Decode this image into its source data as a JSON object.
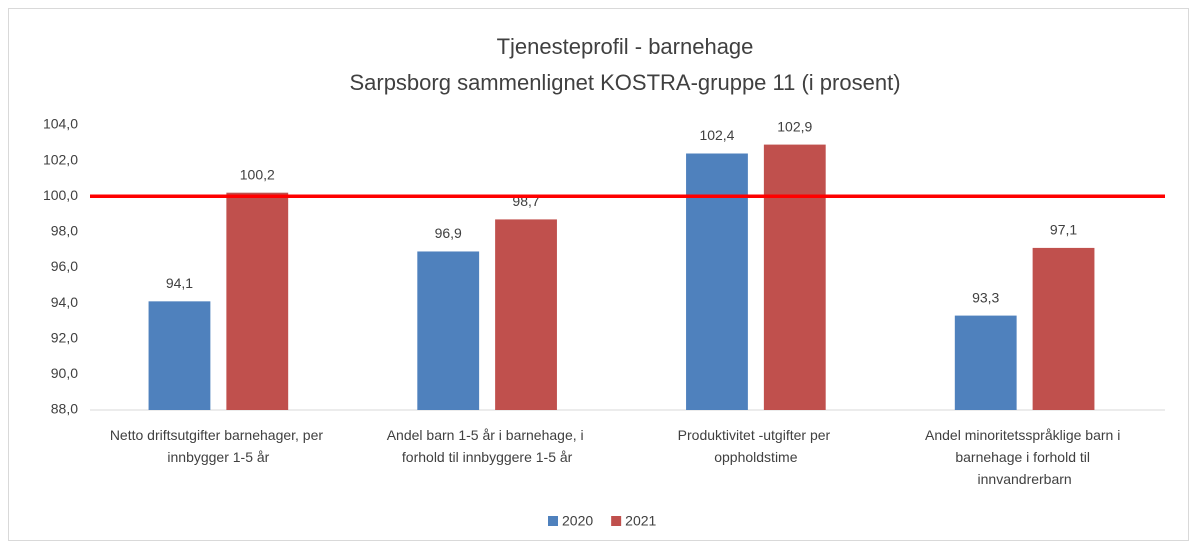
{
  "chart_data": {
    "type": "bar",
    "title": [
      "Tjenesteprofil - barnehage",
      "Sarpsborg sammenlignet KOSTRA-gruppe 11 (i prosent)"
    ],
    "categories": [
      "Netto driftsutgifter barnehager, per innbygger 1-5 år",
      "Andel barn 1-5 år i barnehage, i forhold til innbyggere 1-5 år",
      "Produktivitet -utgifter per oppholdstime",
      "Andel minoritetsspråklige barn i barnehage i forhold til innvandrerbarn"
    ],
    "series": [
      {
        "name": "2020",
        "color": "#4f81bd",
        "values": [
          94.1,
          96.9,
          102.4,
          93.3
        ],
        "value_labels": [
          "94,1",
          "96,9",
          "102,4",
          "93,3"
        ]
      },
      {
        "name": "2021",
        "color": "#c0504d",
        "values": [
          100.2,
          98.7,
          102.9,
          97.1
        ],
        "value_labels": [
          "100,2",
          "98,7",
          "102,9",
          "97,1"
        ]
      }
    ],
    "ylim": [
      88,
      104
    ],
    "yticks": [
      {
        "value": 88,
        "label": "88,0"
      },
      {
        "value": 90,
        "label": "90,0"
      },
      {
        "value": 92,
        "label": "92,0"
      },
      {
        "value": 94,
        "label": "94,0"
      },
      {
        "value": 96,
        "label": "96,0"
      },
      {
        "value": 98,
        "label": "98,0"
      },
      {
        "value": 100,
        "label": "100,0"
      },
      {
        "value": 102,
        "label": "102,0"
      },
      {
        "value": 104,
        "label": "104,0"
      }
    ],
    "grid": false,
    "reference_line": {
      "value": 100,
      "color": "#ff0000"
    },
    "legend": "bottom"
  }
}
